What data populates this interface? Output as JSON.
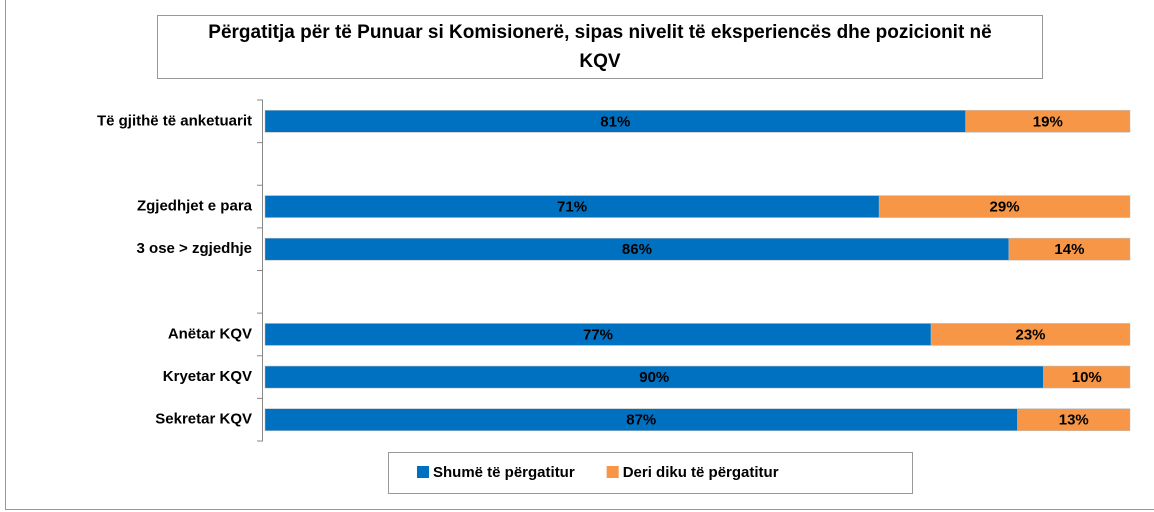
{
  "chart_data": {
    "type": "stacked-barh",
    "title": "Përgatitja për të Punuar si Komisionerë, sipas nivelit të eksperiencës dhe pozicionit në KQV",
    "categories": [
      "Të gjithë të anketuarit",
      null,
      "Zgjedhjet e para",
      "3 ose > zgjedhje",
      null,
      "Anëtar KQV",
      "Kryetar KQV",
      "Sekretar KQV"
    ],
    "series": [
      {
        "name": "Shumë të përgatitur",
        "color": "#0070c0",
        "values": [
          81,
          null,
          71,
          86,
          null,
          77,
          90,
          87
        ],
        "value_labels": [
          "81%",
          null,
          "71%",
          "86%",
          null,
          "77%",
          "90%",
          "87%"
        ]
      },
      {
        "name": "Deri diku të përgatitur",
        "color": "#f79646",
        "values": [
          19,
          null,
          29,
          14,
          null,
          23,
          10,
          13
        ],
        "value_labels": [
          "19%",
          null,
          "29%",
          "14%",
          null,
          "23%",
          "10%",
          "13%"
        ]
      }
    ],
    "legend": "bottom"
  }
}
